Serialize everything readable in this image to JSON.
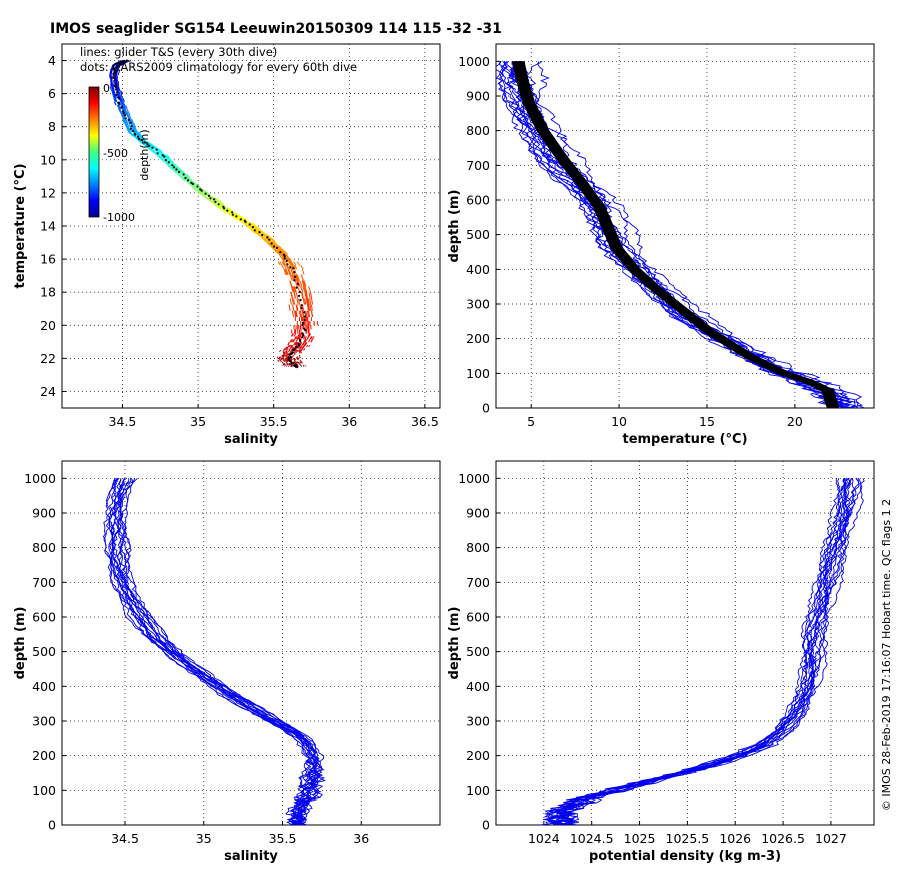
{
  "figure": {
    "title": "IMOS seaglider SG154 Leeuwin20150309 114  115  -32  -31",
    "footer": "© IMOS 28-Feb-2019 17:16:07 Hobart time. QC flags 1  2",
    "legend_lines": "lines: glider T&S (every 30th dive)",
    "legend_dots": "dots: CARS2009 climatology for every 60th dive",
    "colorbar": {
      "label": "depth(m)",
      "ticks": [
        "0",
        "-500",
        "-1000"
      ],
      "range": [
        -1000,
        0
      ],
      "colormap": "jet"
    },
    "colors": {
      "profile": "#0000ee",
      "climatology": "#000000",
      "grid": "#000000"
    }
  },
  "chart_data": [
    {
      "type": "line",
      "name": "ts-diagram",
      "xlabel": "salinity",
      "ylabel": "temperature (°C)",
      "xlim": [
        34.1,
        36.6
      ],
      "ylim": [
        3.0,
        25.0
      ],
      "xticks": [
        34.5,
        35,
        35.5,
        36,
        36.5
      ],
      "xtick_labels": [
        "34.5",
        "35",
        "35.5",
        "36",
        "36.5"
      ],
      "yticks": [
        4,
        6,
        8,
        10,
        12,
        14,
        16,
        18,
        20,
        22,
        24
      ],
      "ytick_labels": [
        "4",
        "6",
        "8",
        "10",
        "12",
        "14",
        "16",
        "18",
        "20",
        "22",
        "24"
      ],
      "grid": true,
      "series": [
        {
          "points": [
            {
              "x": 34.52,
              "y": 4.0,
              "depth": 1000
            },
            {
              "x": 34.46,
              "y": 4.3,
              "depth": 950
            },
            {
              "x": 34.44,
              "y": 4.9,
              "depth": 900
            },
            {
              "x": 34.45,
              "y": 5.6,
              "depth": 850
            },
            {
              "x": 34.48,
              "y": 6.5,
              "depth": 800
            },
            {
              "x": 34.52,
              "y": 7.3,
              "depth": 750
            },
            {
              "x": 34.57,
              "y": 8.3,
              "depth": 700
            },
            {
              "x": 34.64,
              "y": 8.9,
              "depth": 650
            },
            {
              "x": 34.76,
              "y": 9.7,
              "depth": 600
            },
            {
              "x": 34.86,
              "y": 10.6,
              "depth": 550
            },
            {
              "x": 34.97,
              "y": 11.5,
              "depth": 500
            },
            {
              "x": 35.08,
              "y": 12.3,
              "depth": 450
            },
            {
              "x": 35.2,
              "y": 13.1,
              "depth": 400
            },
            {
              "x": 35.32,
              "y": 13.8,
              "depth": 350
            },
            {
              "x": 35.45,
              "y": 14.7,
              "depth": 300
            },
            {
              "x": 35.56,
              "y": 15.7,
              "depth": 250
            },
            {
              "x": 35.62,
              "y": 16.6,
              "depth": 220
            },
            {
              "x": 35.67,
              "y": 18.0,
              "depth": 190
            },
            {
              "x": 35.7,
              "y": 19.5,
              "depth": 160
            },
            {
              "x": 35.7,
              "y": 20.5,
              "depth": 130
            },
            {
              "x": 35.66,
              "y": 21.2,
              "depth": 100
            },
            {
              "x": 35.62,
              "y": 21.6,
              "depth": 80
            },
            {
              "x": 35.6,
              "y": 22.0,
              "depth": 50
            },
            {
              "x": 35.64,
              "y": 22.4,
              "depth": 20
            },
            {
              "x": 35.65,
              "y": 22.5,
              "depth": 0
            }
          ]
        }
      ]
    },
    {
      "type": "line",
      "name": "temperature-profile",
      "xlabel": "temperature (°C)",
      "ylabel": "depth (m)",
      "xlim": [
        3.0,
        24.5
      ],
      "ylim": [
        1050,
        0
      ],
      "xticks": [
        5,
        10,
        15,
        20
      ],
      "xtick_labels": [
        "5",
        "10",
        "15",
        "20"
      ],
      "yticks": [
        0,
        100,
        200,
        300,
        400,
        500,
        600,
        700,
        800,
        900,
        1000
      ],
      "ytick_labels": [
        "0",
        "100",
        "200",
        "300",
        "400",
        "500",
        "600",
        "700",
        "800",
        "900",
        "1000"
      ],
      "grid": true,
      "series": [
        {
          "name": "glider",
          "x": [
            23.0,
            22.6,
            21.8,
            20.8,
            19.5,
            18.4,
            16.8,
            15.3,
            13.7,
            12.6,
            11.5,
            10.7,
            10.0,
            9.5,
            8.9,
            8.2,
            7.3,
            6.4,
            5.7,
            5.1,
            4.7,
            4.4,
            4.2
          ],
          "y": [
            0,
            25,
            50,
            75,
            100,
            125,
            175,
            225,
            275,
            325,
            375,
            425,
            475,
            525,
            575,
            625,
            675,
            725,
            775,
            825,
            875,
            950,
            1000
          ]
        },
        {
          "name": "climatology",
          "x": [
            22.3,
            22.0,
            21.0,
            19.5,
            17.5,
            15.3,
            13.8,
            12.3,
            11.0,
            10.0,
            9.5,
            9.0,
            8.0,
            6.9,
            5.8,
            5.0,
            4.6,
            4.4
          ],
          "y": [
            0,
            50,
            75,
            100,
            150,
            220,
            280,
            340,
            400,
            460,
            520,
            580,
            650,
            720,
            800,
            880,
            950,
            1000
          ]
        }
      ]
    },
    {
      "type": "line",
      "name": "salinity-profile",
      "xlabel": "salinity",
      "ylabel": "depth (m)",
      "xlim": [
        34.1,
        36.5
      ],
      "ylim": [
        1050,
        0
      ],
      "xticks": [
        34.5,
        35,
        35.5,
        36
      ],
      "xtick_labels": [
        "34.5",
        "35",
        "35.5",
        "36"
      ],
      "yticks": [
        0,
        100,
        200,
        300,
        400,
        500,
        600,
        700,
        800,
        900,
        1000
      ],
      "ytick_labels": [
        "0",
        "100",
        "200",
        "300",
        "400",
        "500",
        "600",
        "700",
        "800",
        "900",
        "1000"
      ],
      "grid": true,
      "series": [
        {
          "name": "glider",
          "x": [
            35.6,
            35.6,
            35.66,
            35.68,
            35.7,
            35.68,
            35.65,
            35.6,
            35.45,
            35.3,
            35.15,
            35.0,
            34.85,
            34.7,
            34.6,
            34.52,
            34.47,
            34.45,
            34.44,
            34.46,
            34.5
          ],
          "y": [
            0,
            40,
            80,
            120,
            170,
            210,
            240,
            260,
            300,
            340,
            380,
            430,
            480,
            540,
            600,
            660,
            720,
            800,
            880,
            950,
            1000
          ]
        }
      ]
    },
    {
      "type": "line",
      "name": "density-profile",
      "xlabel": "potential density (kg m-3)",
      "ylabel": "depth (m)",
      "xlim": [
        1023.5,
        1027.45
      ],
      "ylim": [
        1050,
        0
      ],
      "xticks": [
        1024,
        1024.5,
        1025,
        1025.5,
        1026,
        1026.5,
        1027
      ],
      "xtick_labels": [
        "1024",
        "1024.5",
        "1025",
        "1025.5",
        "1026",
        "1026.5",
        "1027"
      ],
      "yticks": [
        0,
        100,
        200,
        300,
        400,
        500,
        600,
        700,
        800,
        900,
        1000
      ],
      "ytick_labels": [
        "0",
        "100",
        "200",
        "300",
        "400",
        "500",
        "600",
        "700",
        "800",
        "900",
        "1000"
      ],
      "grid": true,
      "series": [
        {
          "name": "glider",
          "x": [
            1024.15,
            1024.2,
            1024.5,
            1024.9,
            1025.3,
            1025.7,
            1026.05,
            1026.3,
            1026.5,
            1026.65,
            1026.75,
            1026.8,
            1026.83,
            1026.85,
            1026.9,
            1026.97,
            1027.05,
            1027.12,
            1027.18,
            1027.22
          ],
          "y": [
            0,
            40,
            80,
            110,
            140,
            170,
            200,
            230,
            270,
            320,
            380,
            440,
            500,
            560,
            620,
            700,
            780,
            860,
            940,
            1000
          ]
        }
      ]
    }
  ]
}
